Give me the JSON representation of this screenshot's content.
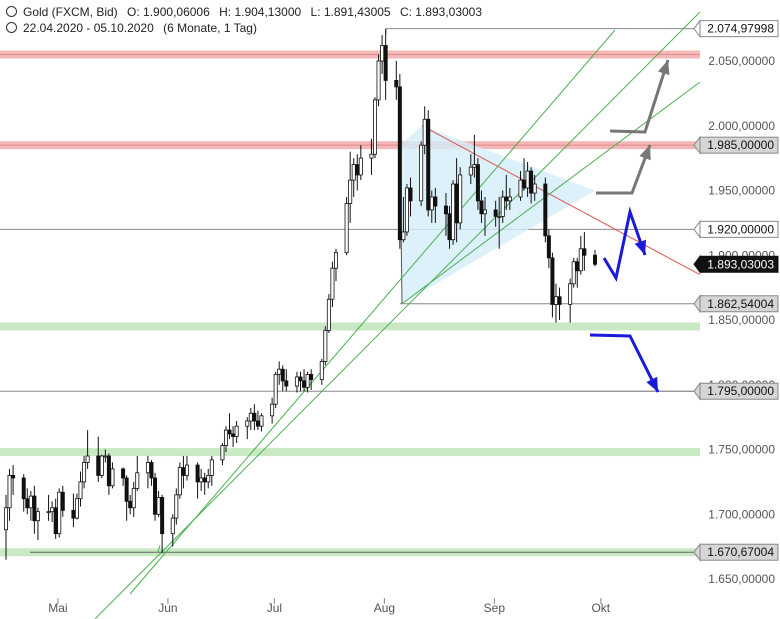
{
  "header": {
    "instrument": "Gold (FXCM, Bid)",
    "open": "O: 1.900,06006",
    "high": "H: 1.904,13000",
    "low": "L: 1.891,43005",
    "close": "C: 1.893,03003",
    "period": "22.04.2020 - 05.10.2020",
    "resolution": "(6 Monate, 1 Tag)"
  },
  "colors": {
    "up_candle": "#ffffff",
    "down_candle": "#111111",
    "resistance_zone": "#f4b8b8",
    "support_zone": "#c9e8c4",
    "trend_line": "#4caf50",
    "triangle_fill": "#d4eefa",
    "downtrend_line": "#e05050",
    "bull_arrow": "#777777",
    "bear_arrow": "#1a1ad9",
    "price_badge": "#111111"
  },
  "chart_data": {
    "type": "candlestick",
    "x_ticks": [
      "Mai",
      "Jun",
      "Jul",
      "Aug",
      "Sep",
      "Okt"
    ],
    "y_ticks": [
      "2.050,00000",
      "2.000,00000",
      "1.950,00000",
      "1.900,00000",
      "1.850,00000",
      "1.800,00000",
      "1.750,00000",
      "1.700,00000",
      "1.650,00000"
    ],
    "ylim": [
      1635,
      2085
    ],
    "level_labels": [
      {
        "value": 2074.97998,
        "label": "2.074,97998",
        "style": "outline"
      },
      {
        "value": 1985.0,
        "label": "1.985,00000",
        "style": "gray"
      },
      {
        "value": 1920.0,
        "label": "1.920,00000",
        "style": "outline"
      },
      {
        "value": 1893.03003,
        "label": "1.893,03003",
        "style": "current"
      },
      {
        "value": 1862.54004,
        "label": "1.862,54004",
        "style": "gray"
      },
      {
        "value": 1795.0,
        "label": "1.795,00000",
        "style": "gray"
      },
      {
        "value": 1670.67004,
        "label": "1.670,67004",
        "style": "gray"
      }
    ],
    "zones": [
      {
        "kind": "resistance",
        "value": 2055
      },
      {
        "kind": "resistance",
        "value": 1985
      },
      {
        "kind": "support",
        "value": 1845
      },
      {
        "kind": "support",
        "value": 1748
      },
      {
        "kind": "support",
        "value": 1670.67
      }
    ],
    "candles": [
      {
        "date": "2020-04-22",
        "o": 1688,
        "h": 1715,
        "l": 1665,
        "c": 1705
      },
      {
        "date": "2020-04-23",
        "o": 1705,
        "h": 1735,
        "l": 1695,
        "c": 1730
      },
      {
        "date": "2020-04-24",
        "o": 1730,
        "h": 1738,
        "l": 1715,
        "c": 1728
      },
      {
        "date": "2020-04-27",
        "o": 1728,
        "h": 1731,
        "l": 1702,
        "c": 1712
      },
      {
        "date": "2020-04-28",
        "o": 1712,
        "h": 1720,
        "l": 1700,
        "c": 1705
      },
      {
        "date": "2020-04-29",
        "o": 1705,
        "h": 1718,
        "l": 1695,
        "c": 1714
      },
      {
        "date": "2020-04-30",
        "o": 1714,
        "h": 1722,
        "l": 1685,
        "c": 1695
      },
      {
        "date": "2020-05-01",
        "o": 1695,
        "h": 1705,
        "l": 1680,
        "c": 1702
      },
      {
        "date": "2020-05-04",
        "o": 1702,
        "h": 1715,
        "l": 1695,
        "c": 1702
      },
      {
        "date": "2020-05-05",
        "o": 1702,
        "h": 1710,
        "l": 1694,
        "c": 1705
      },
      {
        "date": "2020-05-06",
        "o": 1705,
        "h": 1712,
        "l": 1681,
        "c": 1685
      },
      {
        "date": "2020-05-07",
        "o": 1685,
        "h": 1720,
        "l": 1682,
        "c": 1717
      },
      {
        "date": "2020-05-08",
        "o": 1717,
        "h": 1722,
        "l": 1698,
        "c": 1703
      },
      {
        "date": "2020-05-11",
        "o": 1703,
        "h": 1716,
        "l": 1690,
        "c": 1697
      },
      {
        "date": "2020-05-12",
        "o": 1697,
        "h": 1716,
        "l": 1696,
        "c": 1712
      },
      {
        "date": "2020-05-13",
        "o": 1712,
        "h": 1733,
        "l": 1706,
        "c": 1725
      },
      {
        "date": "2020-05-14",
        "o": 1725,
        "h": 1745,
        "l": 1720,
        "c": 1740
      },
      {
        "date": "2020-05-15",
        "o": 1740,
        "h": 1765,
        "l": 1735,
        "c": 1745
      },
      {
        "date": "2020-05-18",
        "o": 1745,
        "h": 1760,
        "l": 1725,
        "c": 1730
      },
      {
        "date": "2020-05-19",
        "o": 1730,
        "h": 1746,
        "l": 1728,
        "c": 1745
      },
      {
        "date": "2020-05-20",
        "o": 1745,
        "h": 1750,
        "l": 1740,
        "c": 1745
      },
      {
        "date": "2020-05-21",
        "o": 1745,
        "h": 1747,
        "l": 1715,
        "c": 1722
      },
      {
        "date": "2020-05-22",
        "o": 1722,
        "h": 1740,
        "l": 1720,
        "c": 1735
      },
      {
        "date": "2020-05-25",
        "o": 1735,
        "h": 1736,
        "l": 1722,
        "c": 1728
      },
      {
        "date": "2020-05-26",
        "o": 1728,
        "h": 1730,
        "l": 1695,
        "c": 1710
      },
      {
        "date": "2020-05-27",
        "o": 1710,
        "h": 1715,
        "l": 1700,
        "c": 1705
      },
      {
        "date": "2020-05-28",
        "o": 1705,
        "h": 1725,
        "l": 1698,
        "c": 1720
      },
      {
        "date": "2020-05-29",
        "o": 1720,
        "h": 1745,
        "l": 1718,
        "c": 1732
      },
      {
        "date": "2020-06-01",
        "o": 1732,
        "h": 1745,
        "l": 1720,
        "c": 1740
      },
      {
        "date": "2020-06-02",
        "o": 1740,
        "h": 1742,
        "l": 1722,
        "c": 1728
      },
      {
        "date": "2020-06-03",
        "o": 1728,
        "h": 1732,
        "l": 1695,
        "c": 1700
      },
      {
        "date": "2020-06-04",
        "o": 1700,
        "h": 1718,
        "l": 1698,
        "c": 1713
      },
      {
        "date": "2020-06-05",
        "o": 1713,
        "h": 1715,
        "l": 1670,
        "c": 1685
      },
      {
        "date": "2020-06-08",
        "o": 1685,
        "h": 1700,
        "l": 1675,
        "c": 1697
      },
      {
        "date": "2020-06-09",
        "o": 1697,
        "h": 1720,
        "l": 1692,
        "c": 1715
      },
      {
        "date": "2020-06-10",
        "o": 1715,
        "h": 1740,
        "l": 1712,
        "c": 1736
      },
      {
        "date": "2020-06-11",
        "o": 1736,
        "h": 1745,
        "l": 1720,
        "c": 1730
      },
      {
        "date": "2020-06-12",
        "o": 1730,
        "h": 1745,
        "l": 1726,
        "c": 1738
      },
      {
        "date": "2020-06-15",
        "o": 1738,
        "h": 1740,
        "l": 1712,
        "c": 1725
      },
      {
        "date": "2020-06-16",
        "o": 1725,
        "h": 1735,
        "l": 1718,
        "c": 1728
      },
      {
        "date": "2020-06-17",
        "o": 1728,
        "h": 1732,
        "l": 1715,
        "c": 1725
      },
      {
        "date": "2020-06-18",
        "o": 1725,
        "h": 1735,
        "l": 1720,
        "c": 1730
      },
      {
        "date": "2020-06-19",
        "o": 1730,
        "h": 1745,
        "l": 1722,
        "c": 1742
      },
      {
        "date": "2020-06-22",
        "o": 1742,
        "h": 1755,
        "l": 1738,
        "c": 1753
      },
      {
        "date": "2020-06-23",
        "o": 1753,
        "h": 1768,
        "l": 1748,
        "c": 1765
      },
      {
        "date": "2020-06-24",
        "o": 1765,
        "h": 1778,
        "l": 1758,
        "c": 1762
      },
      {
        "date": "2020-06-25",
        "o": 1762,
        "h": 1768,
        "l": 1752,
        "c": 1760
      },
      {
        "date": "2020-06-26",
        "o": 1760,
        "h": 1772,
        "l": 1755,
        "c": 1768
      },
      {
        "date": "2020-06-29",
        "o": 1768,
        "h": 1775,
        "l": 1758,
        "c": 1772
      },
      {
        "date": "2020-06-30",
        "o": 1772,
        "h": 1782,
        "l": 1765,
        "c": 1778
      },
      {
        "date": "2020-07-01",
        "o": 1778,
        "h": 1785,
        "l": 1765,
        "c": 1772
      },
      {
        "date": "2020-07-02",
        "o": 1772,
        "h": 1780,
        "l": 1765,
        "c": 1768
      },
      {
        "date": "2020-07-03",
        "o": 1768,
        "h": 1778,
        "l": 1764,
        "c": 1776
      },
      {
        "date": "2020-07-06",
        "o": 1776,
        "h": 1790,
        "l": 1770,
        "c": 1785
      },
      {
        "date": "2020-07-07",
        "o": 1785,
        "h": 1810,
        "l": 1782,
        "c": 1808
      },
      {
        "date": "2020-07-08",
        "o": 1808,
        "h": 1818,
        "l": 1800,
        "c": 1812
      },
      {
        "date": "2020-07-09",
        "o": 1812,
        "h": 1815,
        "l": 1795,
        "c": 1803
      },
      {
        "date": "2020-07-10",
        "o": 1803,
        "h": 1812,
        "l": 1795,
        "c": 1799
      },
      {
        "date": "2020-07-13",
        "o": 1799,
        "h": 1810,
        "l": 1794,
        "c": 1806
      },
      {
        "date": "2020-07-14",
        "o": 1806,
        "h": 1810,
        "l": 1795,
        "c": 1803
      },
      {
        "date": "2020-07-15",
        "o": 1803,
        "h": 1812,
        "l": 1795,
        "c": 1798
      },
      {
        "date": "2020-07-16",
        "o": 1798,
        "h": 1810,
        "l": 1794,
        "c": 1808
      },
      {
        "date": "2020-07-17",
        "o": 1808,
        "h": 1812,
        "l": 1796,
        "c": 1804
      },
      {
        "date": "2020-07-20",
        "o": 1804,
        "h": 1820,
        "l": 1800,
        "c": 1818
      },
      {
        "date": "2020-07-21",
        "o": 1818,
        "h": 1845,
        "l": 1815,
        "c": 1842
      },
      {
        "date": "2020-07-22",
        "o": 1842,
        "h": 1870,
        "l": 1840,
        "c": 1866
      },
      {
        "date": "2020-07-23",
        "o": 1866,
        "h": 1895,
        "l": 1860,
        "c": 1890
      },
      {
        "date": "2020-07-24",
        "o": 1890,
        "h": 1905,
        "l": 1880,
        "c": 1902
      },
      {
        "date": "2020-07-27",
        "o": 1902,
        "h": 1945,
        "l": 1900,
        "c": 1940
      },
      {
        "date": "2020-07-28",
        "o": 1940,
        "h": 1980,
        "l": 1925,
        "c": 1958
      },
      {
        "date": "2020-07-29",
        "o": 1958,
        "h": 1975,
        "l": 1945,
        "c": 1970
      },
      {
        "date": "2020-07-30",
        "o": 1970,
        "h": 1978,
        "l": 1950,
        "c": 1962
      },
      {
        "date": "2020-07-31",
        "o": 1962,
        "h": 1985,
        "l": 1958,
        "c": 1975
      },
      {
        "date": "2020-08-03",
        "o": 1975,
        "h": 1990,
        "l": 1962,
        "c": 1978
      },
      {
        "date": "2020-08-04",
        "o": 1978,
        "h": 2022,
        "l": 1975,
        "c": 2020
      },
      {
        "date": "2020-08-05",
        "o": 2020,
        "h": 2055,
        "l": 2015,
        "c": 2050
      },
      {
        "date": "2020-08-06",
        "o": 2050,
        "h": 2070,
        "l": 2040,
        "c": 2062
      },
      {
        "date": "2020-08-07",
        "o": 2062,
        "h": 2075,
        "l": 2020,
        "c": 2035
      },
      {
        "date": "2020-08-10",
        "o": 2035,
        "h": 2050,
        "l": 2020,
        "c": 2030
      },
      {
        "date": "2020-08-11",
        "o": 2030,
        "h": 2040,
        "l": 1905,
        "c": 1912
      },
      {
        "date": "2020-08-12",
        "o": 1912,
        "h": 1945,
        "l": 1910,
        "c": 1918
      },
      {
        "date": "2020-08-13",
        "o": 1918,
        "h": 1955,
        "l": 1915,
        "c": 1952
      },
      {
        "date": "2020-08-14",
        "o": 1952,
        "h": 1960,
        "l": 1930,
        "c": 1942
      },
      {
        "date": "2020-08-17",
        "o": 1942,
        "h": 1988,
        "l": 1938,
        "c": 1985
      },
      {
        "date": "2020-08-18",
        "o": 1985,
        "h": 2015,
        "l": 1978,
        "c": 2005
      },
      {
        "date": "2020-08-19",
        "o": 2005,
        "h": 2012,
        "l": 1930,
        "c": 1935
      },
      {
        "date": "2020-08-20",
        "o": 1935,
        "h": 1950,
        "l": 1925,
        "c": 1945
      },
      {
        "date": "2020-08-21",
        "o": 1945,
        "h": 1952,
        "l": 1925,
        "c": 1938
      },
      {
        "date": "2020-08-24",
        "o": 1938,
        "h": 1948,
        "l": 1915,
        "c": 1932
      },
      {
        "date": "2020-08-25",
        "o": 1932,
        "h": 1938,
        "l": 1905,
        "c": 1912
      },
      {
        "date": "2020-08-26",
        "o": 1912,
        "h": 1958,
        "l": 1908,
        "c": 1955
      },
      {
        "date": "2020-08-27",
        "o": 1955,
        "h": 1975,
        "l": 1910,
        "c": 1925
      },
      {
        "date": "2020-08-28",
        "o": 1925,
        "h": 1968,
        "l": 1920,
        "c": 1962
      },
      {
        "date": "2020-08-31",
        "o": 1962,
        "h": 1978,
        "l": 1955,
        "c": 1968
      },
      {
        "date": "2020-09-01",
        "o": 1968,
        "h": 1993,
        "l": 1960,
        "c": 1970
      },
      {
        "date": "2020-09-02",
        "o": 1970,
        "h": 1975,
        "l": 1935,
        "c": 1942
      },
      {
        "date": "2020-09-03",
        "o": 1942,
        "h": 1950,
        "l": 1925,
        "c": 1932
      },
      {
        "date": "2020-09-04",
        "o": 1932,
        "h": 1945,
        "l": 1915,
        "c": 1935
      },
      {
        "date": "2020-09-07",
        "o": 1935,
        "h": 1942,
        "l": 1922,
        "c": 1930
      },
      {
        "date": "2020-09-08",
        "o": 1930,
        "h": 1945,
        "l": 1905,
        "c": 1930
      },
      {
        "date": "2020-09-09",
        "o": 1930,
        "h": 1950,
        "l": 1925,
        "c": 1945
      },
      {
        "date": "2020-09-10",
        "o": 1945,
        "h": 1962,
        "l": 1935,
        "c": 1942
      },
      {
        "date": "2020-09-11",
        "o": 1942,
        "h": 1952,
        "l": 1935,
        "c": 1945
      },
      {
        "date": "2020-09-14",
        "o": 1945,
        "h": 1965,
        "l": 1942,
        "c": 1958
      },
      {
        "date": "2020-09-15",
        "o": 1958,
        "h": 1975,
        "l": 1950,
        "c": 1952
      },
      {
        "date": "2020-09-16",
        "o": 1952,
        "h": 1972,
        "l": 1945,
        "c": 1965
      },
      {
        "date": "2020-09-17",
        "o": 1965,
        "h": 1968,
        "l": 1940,
        "c": 1948
      },
      {
        "date": "2020-09-18",
        "o": 1948,
        "h": 1962,
        "l": 1942,
        "c": 1955
      },
      {
        "date": "2020-09-21",
        "o": 1955,
        "h": 1960,
        "l": 1910,
        "c": 1915
      },
      {
        "date": "2020-09-22",
        "o": 1915,
        "h": 1920,
        "l": 1890,
        "c": 1898
      },
      {
        "date": "2020-09-23",
        "o": 1898,
        "h": 1902,
        "l": 1852,
        "c": 1862
      },
      {
        "date": "2020-09-24",
        "o": 1862,
        "h": 1878,
        "l": 1848,
        "c": 1868
      },
      {
        "date": "2020-09-25",
        "o": 1868,
        "h": 1875,
        "l": 1850,
        "c": 1862
      },
      {
        "date": "2020-09-28",
        "o": 1862,
        "h": 1882,
        "l": 1848,
        "c": 1878
      },
      {
        "date": "2020-09-29",
        "o": 1878,
        "h": 1898,
        "l": 1875,
        "c": 1895
      },
      {
        "date": "2020-09-30",
        "o": 1895,
        "h": 1898,
        "l": 1875,
        "c": 1888
      },
      {
        "date": "2020-10-01",
        "o": 1888,
        "h": 1915,
        "l": 1885,
        "c": 1905
      },
      {
        "date": "2020-10-02",
        "o": 1905,
        "h": 1918,
        "l": 1888,
        "c": 1900
      },
      {
        "date": "2020-10-05",
        "o": 1900.06006,
        "h": 1904.13,
        "l": 1891.43005,
        "c": 1893.03003
      }
    ]
  }
}
